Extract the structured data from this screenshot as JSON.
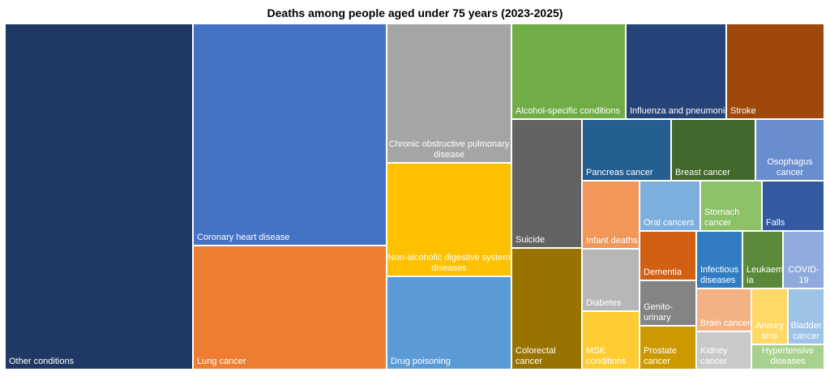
{
  "chart_data": {
    "type": "treemap",
    "title": "Deaths among people aged under 75 years (2023-2025)",
    "items": [
      {
        "name": "Other conditions",
        "label_lines": [
          "Other conditions"
        ],
        "color": "#1F3864",
        "text_color": "#ffffff"
      },
      {
        "name": "Coronary heart disease",
        "label_lines": [
          "Coronary heart disease"
        ],
        "color": "#4472C4",
        "text_color": "#ffffff"
      },
      {
        "name": "Lung cancer",
        "label_lines": [
          "Lung cancer"
        ],
        "color": "#ED7D31",
        "text_color": "#ffffff"
      },
      {
        "name": "Chronic obstructive pulmonary disease",
        "label_lines": [
          "Chronic obstructive pulmonary",
          "disease"
        ],
        "color": "#A5A5A5",
        "text_color": "#ffffff"
      },
      {
        "name": "Non-alcoholic digestive system diseases",
        "label_lines": [
          "Non-alcoholic digestive system",
          "diseases"
        ],
        "color": "#FFC000",
        "text_color": "#ffffff"
      },
      {
        "name": "Drug poisoning",
        "label_lines": [
          "Drug poisoning"
        ],
        "color": "#5B9BD5",
        "text_color": "#ffffff"
      },
      {
        "name": "Alcohol-specific conditions",
        "label_lines": [
          "Alcohol-specific conditions"
        ],
        "color": "#70AD47",
        "text_color": "#ffffff"
      },
      {
        "name": "Influenza and pneumonia",
        "label_lines": [
          "Influenza and pneumonia"
        ],
        "color": "#264478",
        "text_color": "#ffffff"
      },
      {
        "name": "Stroke",
        "label_lines": [
          "Stroke"
        ],
        "color": "#9E480E",
        "text_color": "#ffffff"
      },
      {
        "name": "Suicide",
        "label_lines": [
          "Suicide"
        ],
        "color": "#636363",
        "text_color": "#ffffff"
      },
      {
        "name": "Colorectal cancer",
        "label_lines": [
          "Colorectal",
          "cancer"
        ],
        "color": "#997300",
        "text_color": "#ffffff"
      },
      {
        "name": "Pancreas cancer",
        "label_lines": [
          "Pancreas cancer"
        ],
        "color": "#255E91",
        "text_color": "#ffffff"
      },
      {
        "name": "Breast cancer",
        "label_lines": [
          "Breast cancer"
        ],
        "color": "#43682B",
        "text_color": "#ffffff"
      },
      {
        "name": "Osophagus cancer",
        "label_lines": [
          "Osophagus",
          "cancer"
        ],
        "color": "#698ED0",
        "text_color": "#ffffff"
      },
      {
        "name": "Infant deaths",
        "label_lines": [
          "Infant deaths"
        ],
        "color": "#F1975A",
        "text_color": "#ffffff"
      },
      {
        "name": "Oral cancers",
        "label_lines": [
          "Oral cancers"
        ],
        "color": "#7CAFDD",
        "text_color": "#ffffff"
      },
      {
        "name": "Stomach cancer",
        "label_lines": [
          "Stomach",
          "cancer"
        ],
        "color": "#8CC168",
        "text_color": "#ffffff"
      },
      {
        "name": "Falls",
        "label_lines": [
          "Falls"
        ],
        "color": "#335AA1",
        "text_color": "#ffffff"
      },
      {
        "name": "Diabetes",
        "label_lines": [
          "Diabetes"
        ],
        "color": "#B7B7B7",
        "text_color": "#ffffff"
      },
      {
        "name": "MSK conditions",
        "label_lines": [
          "MSK",
          "conditions"
        ],
        "color": "#FFCD33",
        "text_color": "#ffffff"
      },
      {
        "name": "Dementia",
        "label_lines": [
          "Dementia"
        ],
        "color": "#D26012",
        "text_color": "#ffffff"
      },
      {
        "name": "Genito-urinary",
        "label_lines": [
          "Genito-",
          "urinary"
        ],
        "color": "#848484",
        "text_color": "#ffffff"
      },
      {
        "name": "Prostate cancer",
        "label_lines": [
          "Prostate",
          "cancer"
        ],
        "color": "#CC9A00",
        "text_color": "#ffffff"
      },
      {
        "name": "Infectious diseases",
        "label_lines": [
          "Infectious",
          "diseases"
        ],
        "color": "#327DC2",
        "text_color": "#ffffff"
      },
      {
        "name": "Leukaemia",
        "label_lines": [
          "Leukaem",
          "ia"
        ],
        "color": "#5A8A39",
        "text_color": "#ffffff"
      },
      {
        "name": "COVID-19",
        "label_lines": [
          "COVID-",
          "19"
        ],
        "color": "#8FAADC",
        "text_color": "#ffffff"
      },
      {
        "name": "Brain cancer",
        "label_lines": [
          "Brain cancer"
        ],
        "color": "#F4B183",
        "text_color": "#ffffff"
      },
      {
        "name": "Aneurysms",
        "label_lines": [
          "Aneury",
          "sms"
        ],
        "color": "#FFD966",
        "text_color": "#ffffff"
      },
      {
        "name": "Bladder cancer",
        "label_lines": [
          "Bladder",
          "cancer"
        ],
        "color": "#9DC3E6",
        "text_color": "#ffffff"
      },
      {
        "name": "Kidney cancer",
        "label_lines": [
          "Kidney",
          "cancer"
        ],
        "color": "#C9C9C9",
        "text_color": "#ffffff"
      },
      {
        "name": "Hypertensive diseases",
        "label_lines": [
          "Hypertensive",
          "diseases"
        ],
        "color": "#A9D18E",
        "text_color": "#ffffff"
      }
    ]
  }
}
